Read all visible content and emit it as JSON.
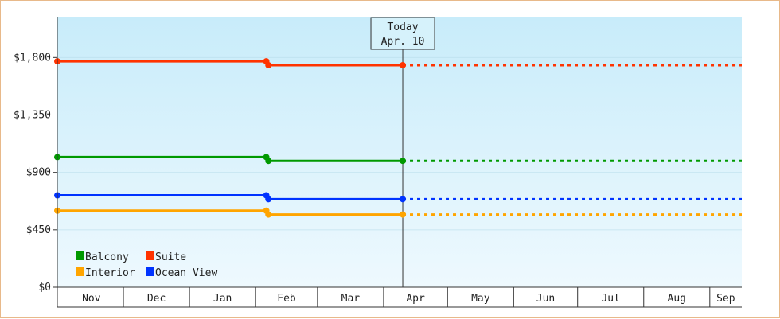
{
  "chart_data": {
    "type": "line",
    "title": "",
    "xlabel": "",
    "ylabel": "",
    "ylim": [
      0,
      2120
    ],
    "y_ticks": [
      0,
      450,
      900,
      1350,
      1800
    ],
    "y_tick_labels": [
      "$0",
      "$450",
      "$900",
      "$1,350",
      "$1,800"
    ],
    "x_start": "2023-10-31",
    "x_end": "2024-09-16",
    "months": [
      {
        "label": "Nov",
        "start": "2023-11-01",
        "end": "2023-12-01"
      },
      {
        "label": "Dec",
        "start": "2023-12-01",
        "end": "2024-01-01"
      },
      {
        "label": "Jan",
        "start": "2024-01-01",
        "end": "2024-02-01"
      },
      {
        "label": "Feb",
        "start": "2024-02-01",
        "end": "2024-03-01"
      },
      {
        "label": "Mar",
        "start": "2024-03-01",
        "end": "2024-04-01"
      },
      {
        "label": "Apr",
        "start": "2024-04-01",
        "end": "2024-05-01"
      },
      {
        "label": "May",
        "start": "2024-05-01",
        "end": "2024-06-01"
      },
      {
        "label": "Jun",
        "start": "2024-06-01",
        "end": "2024-07-01"
      },
      {
        "label": "Jul",
        "start": "2024-07-01",
        "end": "2024-08-01"
      },
      {
        "label": "Aug",
        "start": "2024-08-01",
        "end": "2024-09-01"
      },
      {
        "label": "Sep",
        "start": "2024-09-01",
        "end": "2024-09-16"
      }
    ],
    "today": {
      "date": "2024-04-10",
      "label_line1": "Today",
      "label_line2": "Apr. 10"
    },
    "series": [
      {
        "name": "Suite",
        "color": "#ff3300",
        "points": [
          {
            "x": "2023-10-31",
            "y": 1770
          },
          {
            "x": "2024-02-06",
            "y": 1770
          },
          {
            "x": "2024-02-07",
            "y": 1740
          },
          {
            "x": "2024-04-10",
            "y": 1740
          }
        ],
        "projection": {
          "to": "2024-09-16",
          "y": 1740
        }
      },
      {
        "name": "Balcony",
        "color": "#009900",
        "points": [
          {
            "x": "2023-10-31",
            "y": 1020
          },
          {
            "x": "2024-02-06",
            "y": 1020
          },
          {
            "x": "2024-02-07",
            "y": 990
          },
          {
            "x": "2024-04-10",
            "y": 990
          }
        ],
        "projection": {
          "to": "2024-09-16",
          "y": 990
        }
      },
      {
        "name": "Ocean View",
        "color": "#0033ff",
        "points": [
          {
            "x": "2023-10-31",
            "y": 720
          },
          {
            "x": "2024-02-06",
            "y": 720
          },
          {
            "x": "2024-02-07",
            "y": 690
          },
          {
            "x": "2024-04-10",
            "y": 690
          }
        ],
        "projection": {
          "to": "2024-09-16",
          "y": 690
        }
      },
      {
        "name": "Interior",
        "color": "#ffa500",
        "points": [
          {
            "x": "2023-10-31",
            "y": 600
          },
          {
            "x": "2024-02-06",
            "y": 600
          },
          {
            "x": "2024-02-07",
            "y": 570
          },
          {
            "x": "2024-04-10",
            "y": 570
          }
        ],
        "projection": {
          "to": "2024-09-16",
          "y": 570
        }
      }
    ],
    "legend": {
      "placement": "bottom-left",
      "items": [
        {
          "name": "Balcony",
          "color": "#009900"
        },
        {
          "name": "Suite",
          "color": "#ff3300"
        },
        {
          "name": "Interior",
          "color": "#ffa500"
        },
        {
          "name": "Ocean View",
          "color": "#0033ff"
        }
      ]
    },
    "colors": {
      "bg_top": "#c8ecfa",
      "bg_bottom": "#eef9fe",
      "border": "#e8b98a"
    }
  }
}
